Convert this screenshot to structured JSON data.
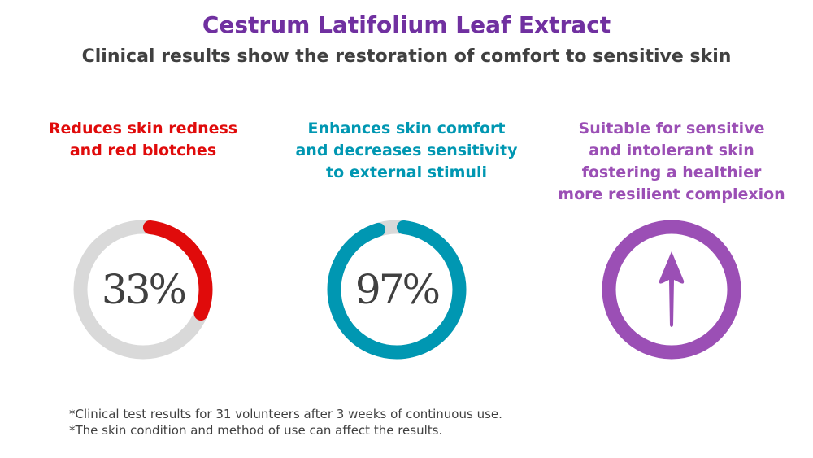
{
  "header": {
    "title": "Cestrum Latifolium Leaf Extract",
    "subtitle": "Clinical results show the restoration of comfort to sensitive skin"
  },
  "columns": [
    {
      "heading": [
        "Reduces skin redness",
        "and red blotches"
      ],
      "value_label": "33%",
      "value": 33,
      "color": "#e00b0b"
    },
    {
      "heading": [
        "Enhances skin comfort",
        "and decreases sensitivity",
        "to external stimuli"
      ],
      "value_label": "97%",
      "value": 97,
      "color": "#0097b2"
    },
    {
      "heading": [
        "Suitable for sensitive",
        "and intolerant skin",
        "fostering a healthier",
        "more resilient complexion"
      ],
      "icon": "arrow-up-icon",
      "color": "#9b4fb5"
    }
  ],
  "track_color": "#d9d9d9",
  "footnotes": [
    "*Clinical test results for 31 volunteers after 3 weeks of continuous use.",
    "*The skin condition and method of use can affect the results."
  ]
}
